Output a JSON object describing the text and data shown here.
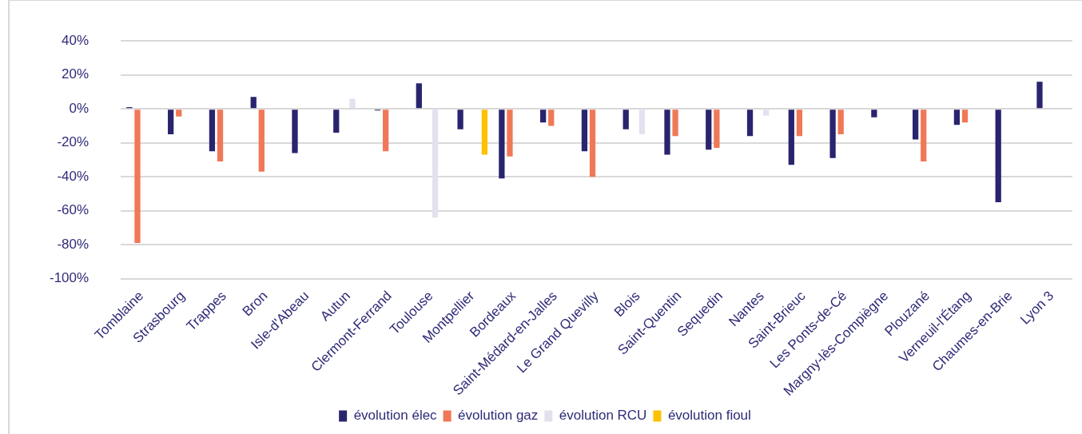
{
  "chart_data": {
    "type": "bar",
    "categories": [
      "Tomblaine",
      "Strasbourg",
      "Trappes",
      "Bron",
      "Isle-d'Abeau",
      "Autun",
      "Clermont-Ferrand",
      "Toulouse",
      "Montpellier",
      "Bordeaux",
      "Saint-Médard-en-Jalles",
      "Le Grand Quevilly",
      "Blois",
      "Saint-Quentin",
      "Sequedin",
      "Nantes",
      "Saint-Brieuc",
      "Les Ponts-de-Cé",
      "Margny-lès-Compiègne",
      "Plouzané",
      "Verneuil-l'Étang",
      "Chaumes-en-Brie",
      "Lyon 3"
    ],
    "series": [
      {
        "name": "évolution élec",
        "color": "#29246e",
        "values": [
          1,
          -15,
          -25,
          7,
          -26,
          -14,
          -1,
          15,
          -12,
          -41,
          -8,
          -25,
          -12,
          -27,
          -24,
          -16,
          -33,
          -29,
          -5,
          -18,
          -9.5,
          -55,
          16
        ]
      },
      {
        "name": "évolution gaz",
        "color": "#f07857",
        "values": [
          -79,
          -4.5,
          -31,
          -37,
          null,
          null,
          -25,
          null,
          null,
          -28,
          -10,
          -40,
          null,
          -16,
          -23,
          null,
          -16,
          -15,
          null,
          -31,
          -8,
          null,
          null
        ]
      },
      {
        "name": "évolution RCU",
        "color": "#e4e1ee",
        "values": [
          null,
          null,
          null,
          null,
          null,
          6,
          null,
          -64,
          null,
          null,
          null,
          null,
          -15,
          null,
          null,
          -4,
          null,
          null,
          null,
          null,
          null,
          null,
          null
        ]
      },
      {
        "name": "évolution fioul",
        "color": "#ffc000",
        "values": [
          null,
          null,
          null,
          null,
          null,
          null,
          null,
          null,
          -27,
          null,
          null,
          null,
          null,
          null,
          null,
          null,
          null,
          null,
          null,
          null,
          null,
          null,
          null
        ]
      }
    ],
    "ylim": [
      -100,
      40
    ],
    "yticks": [
      {
        "value": -100,
        "label": "-100%"
      },
      {
        "value": -80,
        "label": "-80%"
      },
      {
        "value": -60,
        "label": "-60%"
      },
      {
        "value": -40,
        "label": "-40%"
      },
      {
        "value": -20,
        "label": "-20%"
      },
      {
        "value": 0,
        "label": "0%"
      },
      {
        "value": 20,
        "label": "20%"
      },
      {
        "value": 40,
        "label": "40%"
      }
    ],
    "grid": "y",
    "legend": "bottom"
  }
}
